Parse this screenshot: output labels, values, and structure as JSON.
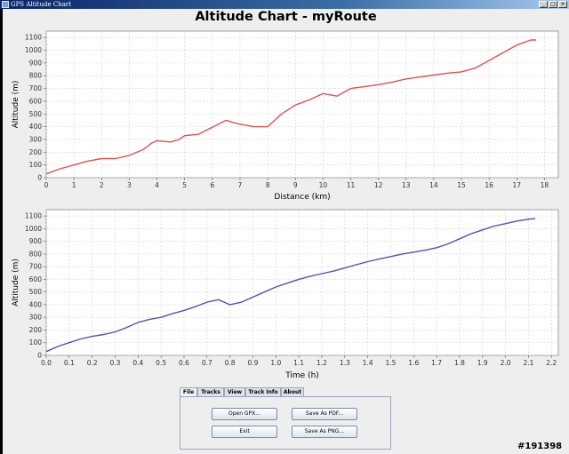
{
  "window": {
    "title": "GPS Altitude Chart",
    "controls": [
      "_",
      "□",
      "×"
    ]
  },
  "page_title": "Altitude Chart - myRoute",
  "chart_data": [
    {
      "type": "line",
      "color": "#e05050",
      "xlabel": "Distance (km)",
      "ylabel": "Altitude (m)",
      "xlim": [
        0,
        18.5
      ],
      "ylim": [
        0,
        1150
      ],
      "x_ticks": [
        "0",
        "1",
        "2",
        "3",
        "4",
        "5",
        "6",
        "7",
        "8",
        "9",
        "10",
        "11",
        "12",
        "13",
        "14",
        "15",
        "16",
        "17",
        "18"
      ],
      "y_ticks": [
        "0",
        "100",
        "200",
        "300",
        "400",
        "500",
        "600",
        "700",
        "800",
        "900",
        "1000",
        "1100"
      ],
      "grid": true,
      "series": [
        {
          "x": [
            0,
            0.5,
            1.0,
            1.5,
            2.0,
            2.5,
            3.0,
            3.5,
            3.8,
            4.0,
            4.5,
            4.8,
            5.0,
            5.5,
            5.8,
            6.0,
            6.5,
            6.8,
            7.0,
            7.5,
            8.0,
            8.5,
            9.0,
            9.5,
            10.0,
            10.5,
            11.0,
            11.5,
            12.0,
            12.5,
            13.0,
            13.5,
            14.0,
            14.5,
            15.0,
            15.5,
            16.0,
            16.5,
            17.0,
            17.5,
            17.7
          ],
          "y": [
            30,
            70,
            100,
            130,
            150,
            150,
            175,
            220,
            270,
            290,
            280,
            300,
            330,
            340,
            375,
            395,
            450,
            430,
            420,
            400,
            400,
            500,
            570,
            610,
            660,
            640,
            700,
            715,
            730,
            750,
            775,
            790,
            805,
            820,
            830,
            860,
            920,
            980,
            1040,
            1080,
            1080
          ]
        }
      ]
    },
    {
      "type": "line",
      "color": "#5050c0",
      "xlabel": "Time (h)",
      "ylabel": "Altitude (m)",
      "xlim": [
        0,
        2.23
      ],
      "ylim": [
        0,
        1150
      ],
      "x_ticks": [
        "0.0",
        "0.1",
        "0.2",
        "0.3",
        "0.4",
        "0.5",
        "0.6",
        "0.7",
        "0.8",
        "0.9",
        "1.0",
        "1.1",
        "1.2",
        "1.3",
        "1.4",
        "1.5",
        "1.6",
        "1.7",
        "1.8",
        "1.9",
        "2.0",
        "2.1",
        "2.2"
      ],
      "y_ticks": [
        "0",
        "100",
        "200",
        "300",
        "400",
        "500",
        "600",
        "700",
        "800",
        "900",
        "1000",
        "1100"
      ],
      "grid": true,
      "series": [
        {
          "x": [
            0,
            0.05,
            0.1,
            0.15,
            0.2,
            0.25,
            0.3,
            0.35,
            0.4,
            0.45,
            0.5,
            0.55,
            0.6,
            0.65,
            0.7,
            0.75,
            0.8,
            0.85,
            0.9,
            0.95,
            1.0,
            1.05,
            1.1,
            1.15,
            1.2,
            1.25,
            1.3,
            1.35,
            1.4,
            1.45,
            1.5,
            1.55,
            1.6,
            1.65,
            1.7,
            1.75,
            1.8,
            1.85,
            1.9,
            1.95,
            2.0,
            2.05,
            2.1,
            2.13
          ],
          "y": [
            30,
            70,
            100,
            130,
            150,
            165,
            185,
            220,
            260,
            285,
            300,
            330,
            355,
            385,
            420,
            440,
            400,
            420,
            460,
            500,
            540,
            570,
            600,
            625,
            645,
            665,
            690,
            715,
            740,
            760,
            780,
            800,
            815,
            830,
            850,
            880,
            920,
            960,
            990,
            1020,
            1040,
            1060,
            1075,
            1080
          ]
        }
      ]
    }
  ],
  "tabs": [
    {
      "label": "File",
      "active": true
    },
    {
      "label": "Tracks",
      "active": false
    },
    {
      "label": "View",
      "active": false
    },
    {
      "label": "Track Info",
      "active": false
    },
    {
      "label": "About",
      "active": false
    }
  ],
  "buttons": {
    "open_gpx": "Open GPX...",
    "save_pdf": "Save As PDF...",
    "exit": "Exit",
    "save_png": "Save As PNG..."
  },
  "watermark": "#191398"
}
